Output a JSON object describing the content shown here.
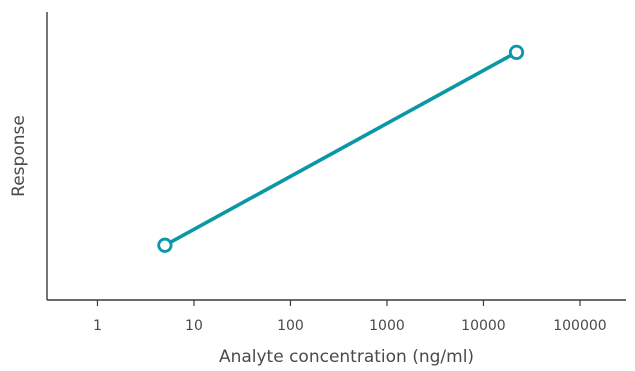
{
  "chart_data": {
    "type": "line",
    "xlabel": "Analyte concentration (ng/ml)",
    "ylabel": "Response",
    "x_scale": "log",
    "xlim": [
      0.3,
      300000
    ],
    "x_ticks": [
      1,
      10,
      100,
      1000,
      10000,
      100000
    ],
    "x_tick_labels": [
      "1",
      "10",
      "100",
      "1000",
      "10000",
      "100000"
    ],
    "ylim": [
      0,
      1
    ],
    "y_ticks_shown": false,
    "grid": false,
    "legend": "none",
    "series": [
      {
        "color": "#0a97a6",
        "marker": "open-circle",
        "points": [
          {
            "x": 5,
            "y": 0.19
          },
          {
            "x": 22000,
            "y": 0.86
          }
        ]
      }
    ]
  }
}
